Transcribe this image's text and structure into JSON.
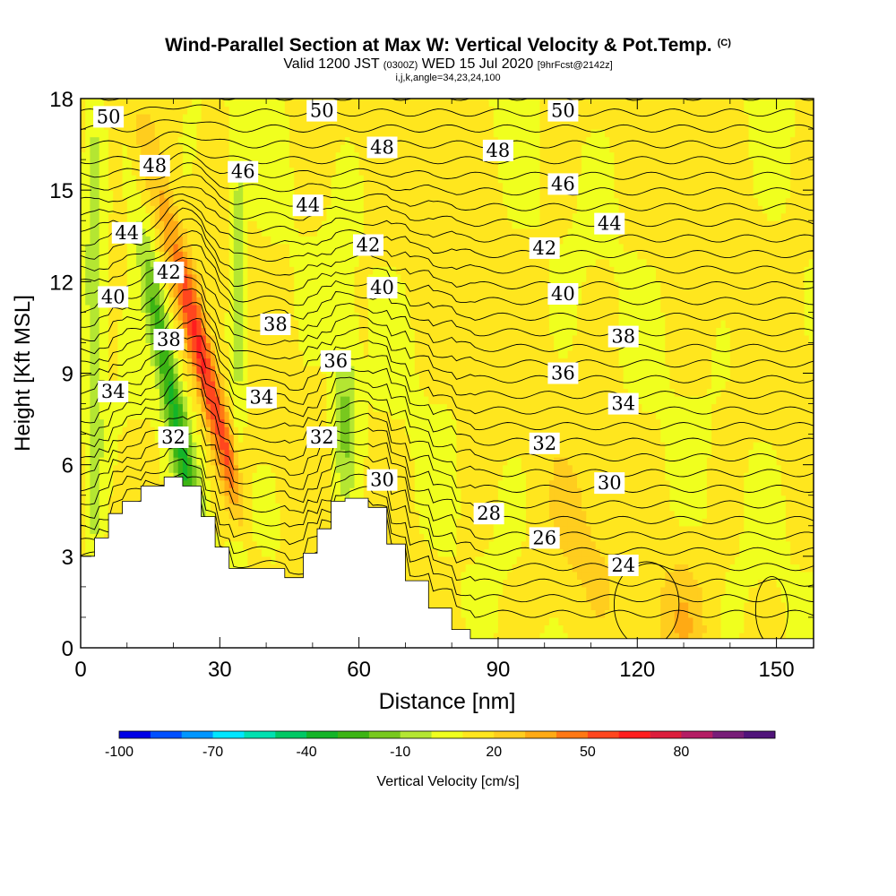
{
  "header": {
    "title": "Wind-Parallel Section at Max W: Vertical Velocity & Pot.Temp.",
    "copyright": "(C)",
    "valid_prefix": "Valid 1200 JST",
    "valid_utc": "(0300Z)",
    "valid_date": "WED 15 Jul 2020",
    "forecast": "[9hrFcst@2142z]",
    "indices": "i,j,k,angle=34,23,24,100"
  },
  "chart_data": {
    "type": "heatmap",
    "title": "Wind-Parallel Section at Max W: Vertical Velocity & Pot.Temp.",
    "xlabel": "Distance [nm]",
    "ylabel": "Height [Kft MSL]",
    "xlim": [
      0,
      158
    ],
    "ylim": [
      0,
      18
    ],
    "x_ticks": [
      "0",
      "30",
      "60",
      "90",
      "120",
      "150"
    ],
    "y_ticks": [
      "0",
      "3",
      "6",
      "9",
      "12",
      "15",
      "18"
    ],
    "colorbar": {
      "label": "Vertical Velocity [cm/s]",
      "tick_labels": [
        "-100",
        "-70",
        "-40",
        "-10",
        "20",
        "50",
        "80"
      ],
      "levels": [
        -100,
        -90,
        -80,
        -70,
        -60,
        -50,
        -40,
        -30,
        -20,
        -10,
        0,
        10,
        20,
        30,
        40,
        50,
        60,
        70,
        80,
        90
      ],
      "colors": [
        "#0000e6",
        "#0050ff",
        "#0096ff",
        "#00e6ff",
        "#00e0b0",
        "#00c864",
        "#14b428",
        "#3cb414",
        "#78c81e",
        "#b4e632",
        "#f0ff1e",
        "#ffe61e",
        "#ffcd1e",
        "#ffaa14",
        "#ff7814",
        "#ff461e",
        "#ff1e1e",
        "#dc1e3c",
        "#b41e64",
        "#781e78",
        "#50147a"
      ]
    },
    "theta_contour_labels": [
      {
        "value": "50",
        "x": 6,
        "y": 17.4
      },
      {
        "value": "50",
        "x": 52,
        "y": 17.6
      },
      {
        "value": "50",
        "x": 104,
        "y": 17.6
      },
      {
        "value": "48",
        "x": 16,
        "y": 15.8
      },
      {
        "value": "48",
        "x": 65,
        "y": 16.4
      },
      {
        "value": "48",
        "x": 90,
        "y": 16.3
      },
      {
        "value": "46",
        "x": 35,
        "y": 15.6
      },
      {
        "value": "46",
        "x": 104,
        "y": 15.2
      },
      {
        "value": "44",
        "x": 10,
        "y": 13.6
      },
      {
        "value": "44",
        "x": 49,
        "y": 14.5
      },
      {
        "value": "44",
        "x": 114,
        "y": 13.9
      },
      {
        "value": "42",
        "x": 19,
        "y": 12.3
      },
      {
        "value": "42",
        "x": 62,
        "y": 13.2
      },
      {
        "value": "42",
        "x": 100,
        "y": 13.1
      },
      {
        "value": "40",
        "x": 7,
        "y": 11.5
      },
      {
        "value": "40",
        "x": 65,
        "y": 11.8
      },
      {
        "value": "40",
        "x": 104,
        "y": 11.6
      },
      {
        "value": "38",
        "x": 19,
        "y": 10.1
      },
      {
        "value": "38",
        "x": 42,
        "y": 10.6
      },
      {
        "value": "38",
        "x": 117,
        "y": 10.2
      },
      {
        "value": "36",
        "x": 55,
        "y": 9.4
      },
      {
        "value": "36",
        "x": 104,
        "y": 9.0
      },
      {
        "value": "34",
        "x": 7,
        "y": 8.4
      },
      {
        "value": "34",
        "x": 39,
        "y": 8.2
      },
      {
        "value": "34",
        "x": 117,
        "y": 8.0
      },
      {
        "value": "32",
        "x": 20,
        "y": 6.9
      },
      {
        "value": "32",
        "x": 52,
        "y": 6.9
      },
      {
        "value": "32",
        "x": 100,
        "y": 6.7
      },
      {
        "value": "30",
        "x": 65,
        "y": 5.5
      },
      {
        "value": "30",
        "x": 114,
        "y": 5.4
      },
      {
        "value": "28",
        "x": 88,
        "y": 4.4
      },
      {
        "value": "26",
        "x": 100,
        "y": 3.6
      },
      {
        "value": "24",
        "x": 117,
        "y": 2.7
      }
    ],
    "terrain": [
      [
        0,
        3.0
      ],
      [
        3,
        3.6
      ],
      [
        6,
        4.4
      ],
      [
        9,
        4.8
      ],
      [
        13,
        5.3
      ],
      [
        18,
        5.6
      ],
      [
        22,
        5.3
      ],
      [
        26,
        4.3
      ],
      [
        29,
        3.3
      ],
      [
        32,
        2.6
      ],
      [
        44,
        2.3
      ],
      [
        48,
        3.1
      ],
      [
        51,
        3.9
      ],
      [
        54,
        4.8
      ],
      [
        57,
        4.9
      ],
      [
        62,
        4.6
      ],
      [
        66,
        3.4
      ],
      [
        70,
        2.2
      ],
      [
        75,
        1.3
      ],
      [
        80,
        0.6
      ],
      [
        84,
        0.3
      ],
      [
        158,
        0.3
      ]
    ]
  }
}
